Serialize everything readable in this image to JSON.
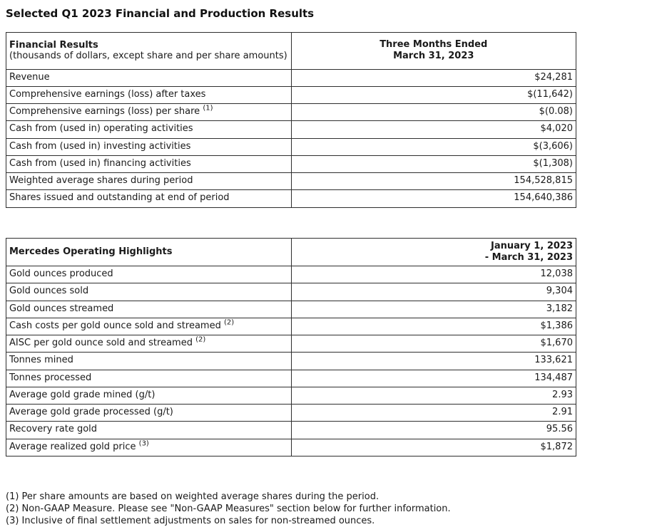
{
  "page_title": "Selected Q1 2023 Financial and Production Results",
  "financial_table": {
    "header": {
      "title": "Financial Results",
      "subtitle": "(thousands of dollars, except share and per share amounts)",
      "period_line1": "Three Months Ended",
      "period_line2": "March 31, 2023"
    },
    "rows": [
      {
        "label": "Revenue",
        "sup": "",
        "value": "$24,281"
      },
      {
        "label": "Comprehensive earnings (loss) after taxes",
        "sup": "",
        "value": "$(11,642)"
      },
      {
        "label": "Comprehensive earnings (loss) per share",
        "sup": "(1)",
        "value": "$(0.08)"
      },
      {
        "label": "Cash from (used in) operating activities",
        "sup": "",
        "value": "$4,020"
      },
      {
        "label": "Cash from (used in) investing activities",
        "sup": "",
        "value": "$(3,606)"
      },
      {
        "label": "Cash from (used in) financing activities",
        "sup": "",
        "value": "$(1,308)"
      },
      {
        "label": "Weighted average shares during period",
        "sup": "",
        "value": "154,528,815"
      },
      {
        "label": "Shares issued and outstanding at end of period",
        "sup": "",
        "value": "154,640,386"
      }
    ]
  },
  "operating_table": {
    "header": {
      "title": "Mercedes Operating Highlights",
      "period_line1": "January 1, 2023",
      "period_line2": "- March 31, 2023"
    },
    "rows": [
      {
        "label": "Gold ounces produced",
        "sup": "",
        "value": "12,038"
      },
      {
        "label": "Gold ounces sold",
        "sup": "",
        "value": "9,304"
      },
      {
        "label": "Gold ounces streamed",
        "sup": "",
        "value": "3,182"
      },
      {
        "label": "Cash costs per gold ounce sold and streamed",
        "sup": "(2)",
        "value": "$1,386"
      },
      {
        "label": "AISC per gold ounce sold and streamed",
        "sup": "(2)",
        "value": "$1,670"
      },
      {
        "label": "Tonnes mined",
        "sup": "",
        "value": "133,621"
      },
      {
        "label": "Tonnes processed",
        "sup": "",
        "value": "134,487"
      },
      {
        "label": "Average gold grade mined (g/t)",
        "sup": "",
        "value": "2.93"
      },
      {
        "label": "Average gold grade processed (g/t)",
        "sup": "",
        "value": "2.91"
      },
      {
        "label": "Recovery rate gold",
        "sup": "",
        "value": "95.56"
      },
      {
        "label": "Average realized gold price",
        "sup": "(3)",
        "value": "$1,872"
      }
    ]
  },
  "footnotes": [
    "(1) Per share amounts are based on weighted average shares during the period.",
    "(2) Non-GAAP Measure. Please see \"Non-GAAP Measures\" section below for further information.",
    "(3) Inclusive of final settlement adjustments on sales for non-streamed ounces."
  ],
  "colors": {
    "text": "#1a1a1a",
    "border": "#2e2e2e",
    "background": "#ffffff"
  }
}
